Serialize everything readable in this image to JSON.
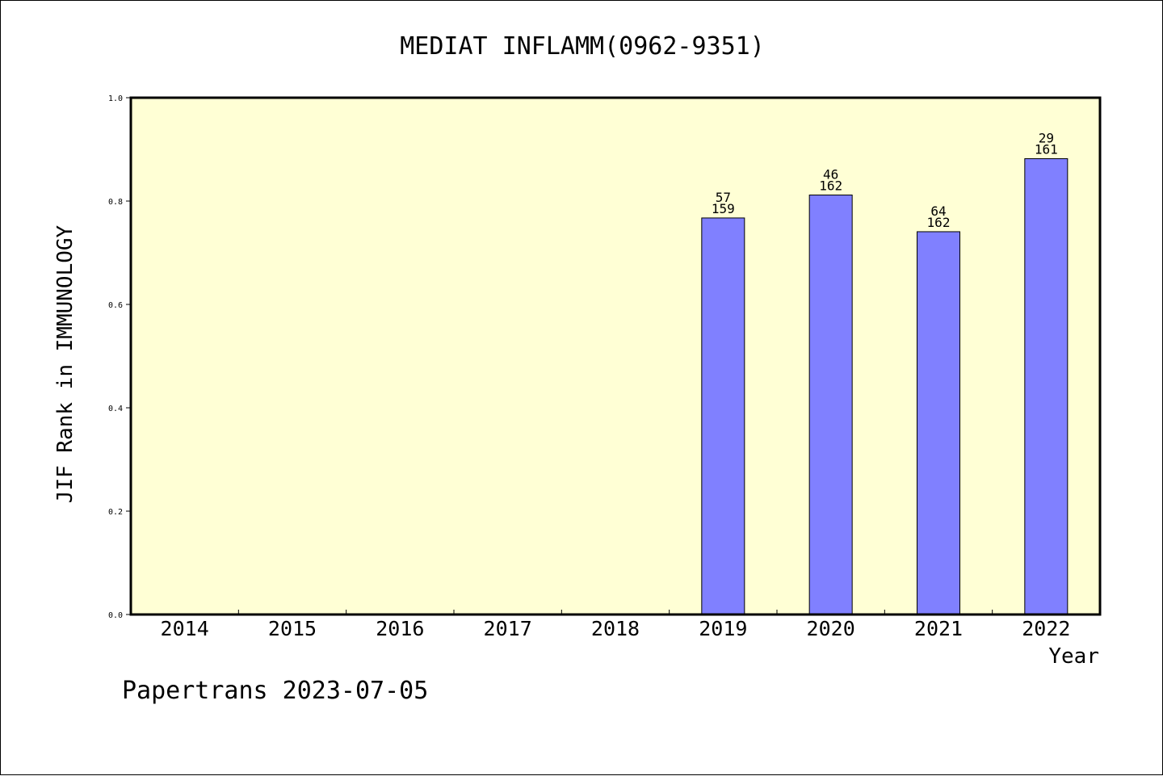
{
  "chart_data": {
    "type": "bar",
    "title": "MEDIAT INFLAMM(0962-9351)",
    "xlabel": "Year",
    "ylabel": "JIF Rank in IMMUNOLOGY",
    "ylim": [
      0.0,
      1.0
    ],
    "yticks": [
      "0.0",
      "0.2",
      "0.4",
      "0.6",
      "0.8",
      "1.0"
    ],
    "ytick_values": [
      0.0,
      0.2,
      0.4,
      0.6,
      0.8,
      1.0
    ],
    "categories": [
      "2014",
      "2015",
      "2016",
      "2017",
      "2018",
      "2019",
      "2020",
      "2021",
      "2022"
    ],
    "values": [
      null,
      null,
      null,
      null,
      null,
      0.7673,
      0.8117,
      0.7407,
      0.882
    ],
    "rank_labels": [
      "",
      "",
      "",
      "",
      "",
      "57",
      "46",
      "64",
      "29"
    ],
    "total_labels": [
      "",
      "",
      "",
      "",
      "",
      "159",
      "162",
      "162",
      "161"
    ],
    "grid": false,
    "legend": "none"
  },
  "colors": {
    "plot_background": "#ffffd5",
    "bar_fill": "#8080ff",
    "bar_stroke": "#000000"
  },
  "footer": {
    "text": "Papertrans 2023-07-05"
  }
}
